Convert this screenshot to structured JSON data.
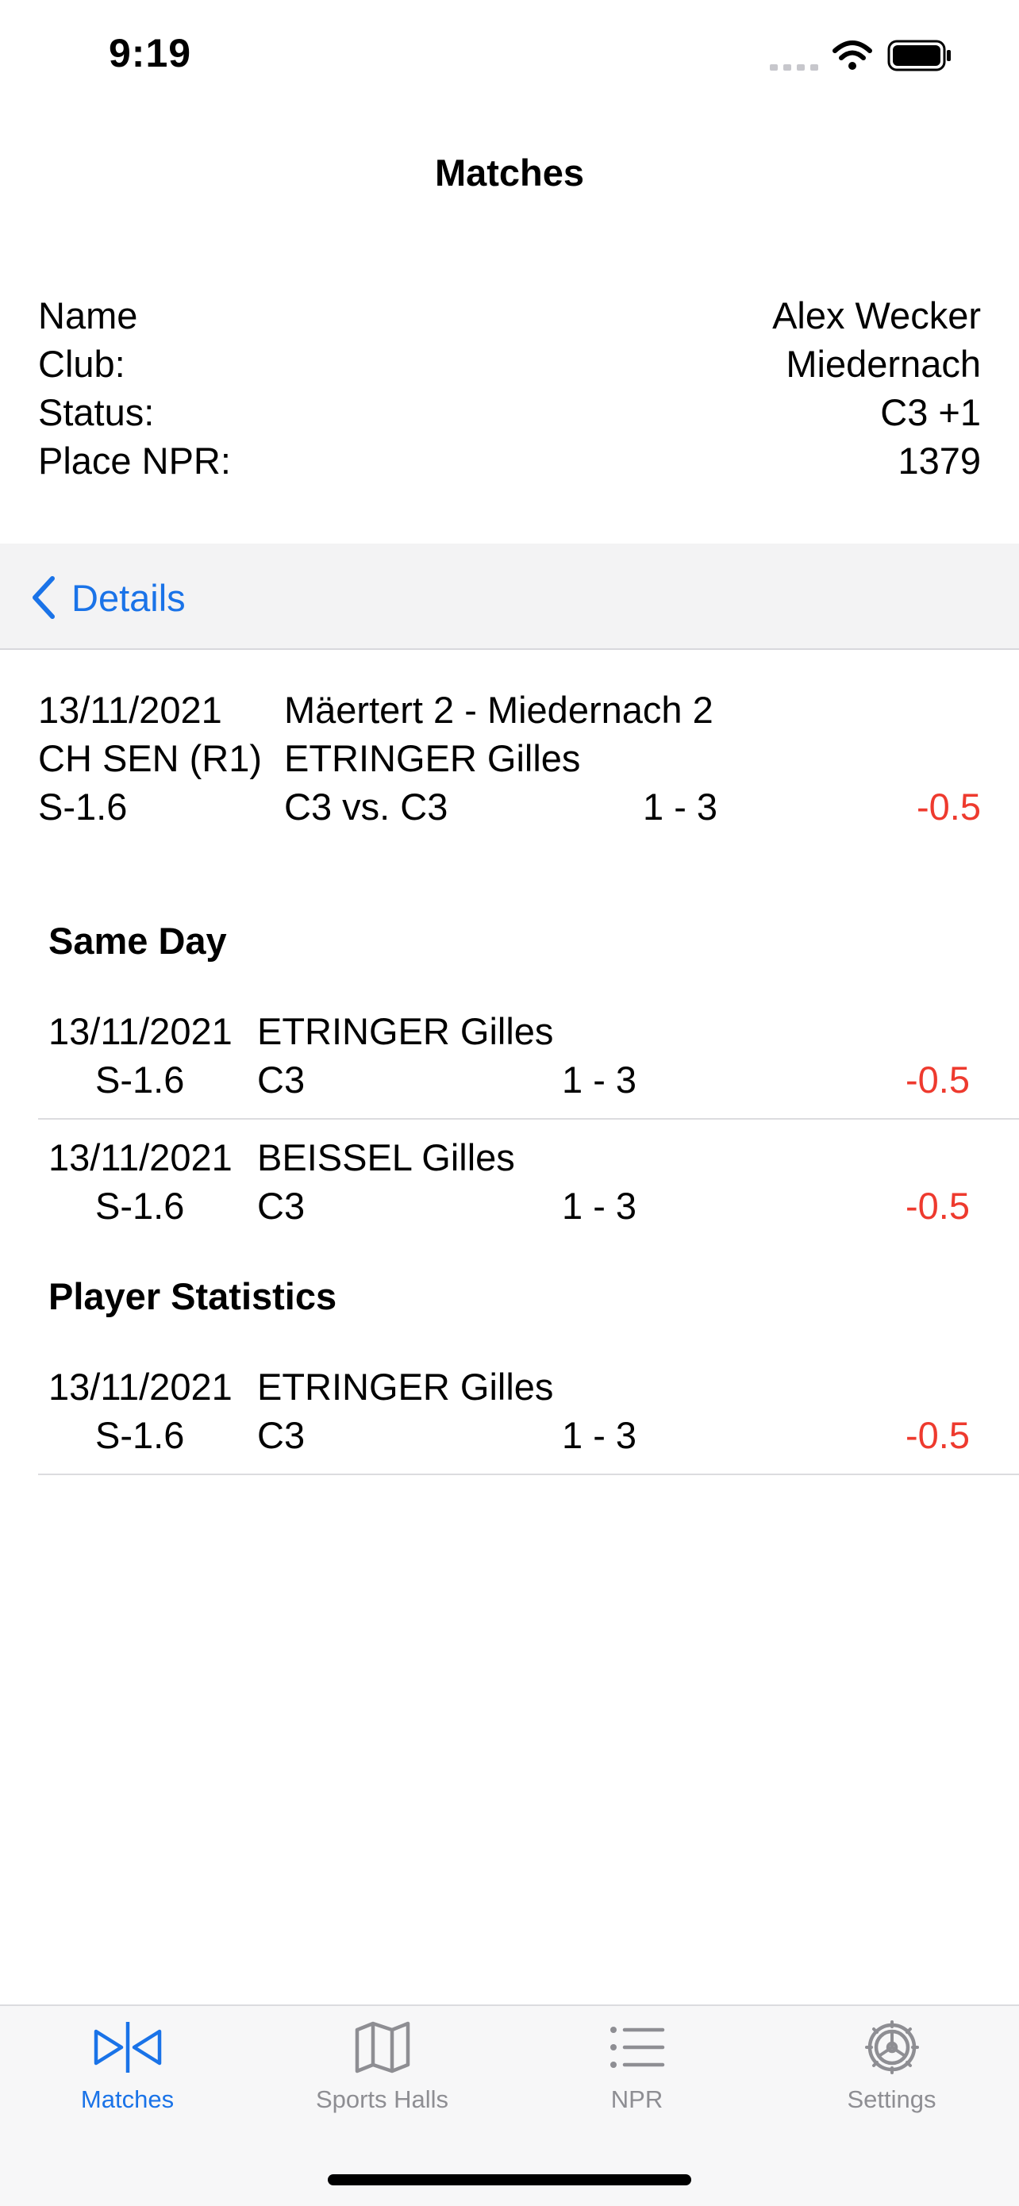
{
  "status_bar": {
    "time": "9:19",
    "signal_icon": "signal-icon",
    "wifi_icon": "wifi-icon",
    "battery_icon": "battery-icon"
  },
  "nav": {
    "title": "Matches"
  },
  "player": {
    "name_label": "Name",
    "name_value": "Alex Wecker",
    "club_label": "Club:",
    "club_value": "Miedernach",
    "status_label": "Status:",
    "status_value": "C3 +1",
    "place_label": "Place NPR:",
    "place_value": "1379"
  },
  "details": {
    "back_label": "Details",
    "icon": "chevron-left-icon"
  },
  "match": {
    "date": "13/11/2021",
    "teams": "Mäertert 2 - Miedernach 2",
    "competition": "CH SEN (R1)",
    "opponent": "ETRINGER Gilles",
    "code": "S-1.6",
    "ranks": "C3 vs. C3",
    "score": "1 - 3",
    "points": "-0.5"
  },
  "same_day": {
    "title": "Same Day",
    "rows": [
      {
        "date": "13/11/2021",
        "code": "S-1.6",
        "opponent": "ETRINGER Gilles",
        "rank": "C3",
        "score": "1 - 3",
        "points": "-0.5"
      },
      {
        "date": "13/11/2021",
        "code": "S-1.6",
        "opponent": "BEISSEL Gilles",
        "rank": "C3",
        "score": "1 - 3",
        "points": "-0.5"
      }
    ]
  },
  "player_stats": {
    "title": "Player Statistics",
    "rows": [
      {
        "date": "13/11/2021",
        "code": "S-1.6",
        "opponent": "ETRINGER Gilles",
        "rank": "C3",
        "score": "1 - 3",
        "points": "-0.5"
      }
    ]
  },
  "tabbar": {
    "tabs": [
      {
        "label": "Matches",
        "icon": "matches-icon",
        "active": true
      },
      {
        "label": "Sports Halls",
        "icon": "map-icon",
        "active": false
      },
      {
        "label": "NPR",
        "icon": "list-icon",
        "active": false
      },
      {
        "label": "Settings",
        "icon": "gear-icon",
        "active": false
      }
    ]
  },
  "colors": {
    "accent": "#1a73e8",
    "negative": "#ee3a2e",
    "inactive": "#8e8e93"
  }
}
